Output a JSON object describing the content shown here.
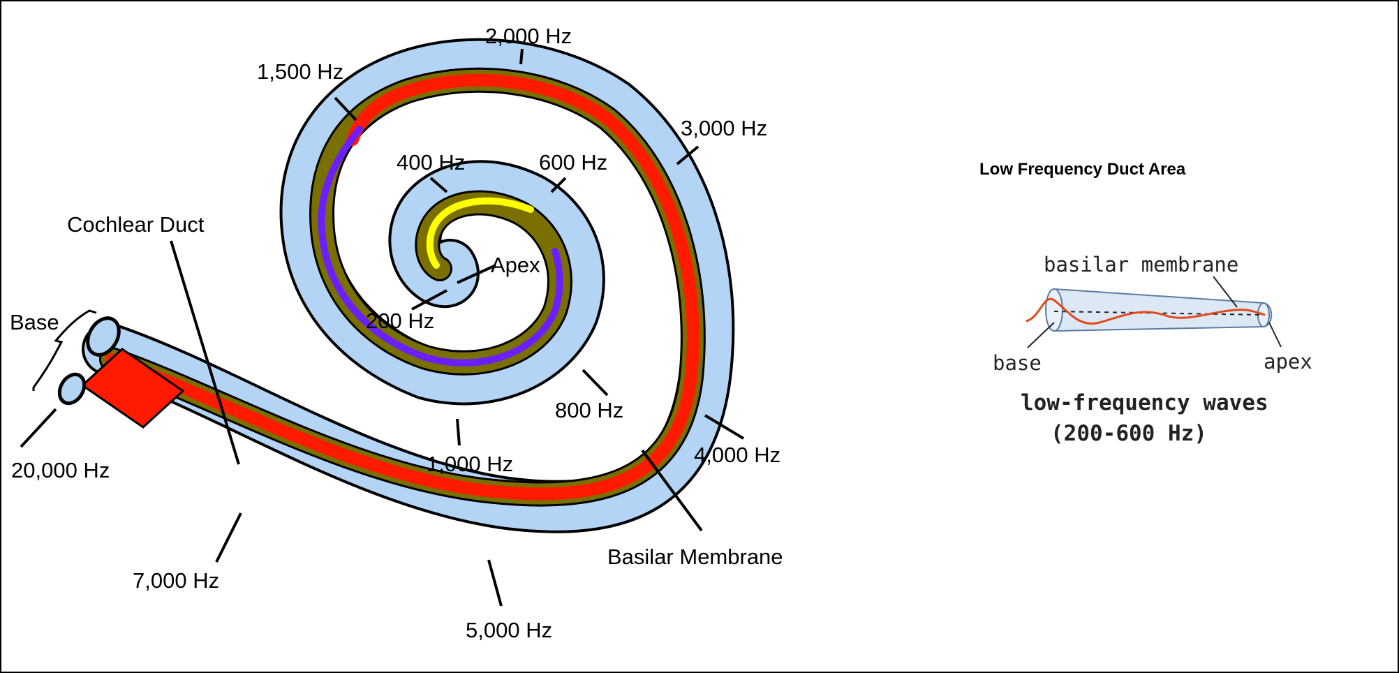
{
  "cochlea": {
    "labels": {
      "f2000": "2,000 Hz",
      "f1500": "1,500 Hz",
      "f3000": "3,000 Hz",
      "f400": "400 Hz",
      "f600": "600 Hz",
      "apex": "Apex",
      "f200": "200 Hz",
      "cochlear_duct": "Cochlear Duct",
      "base": "Base",
      "f20000": "20,000 Hz",
      "f800": "800 Hz",
      "f1000": "1,000 Hz",
      "f4000": "4,000 Hz",
      "basilar_membrane": "Basilar Membrane",
      "f7000": "7,000 Hz",
      "f5000": "5,000 Hz"
    },
    "colors": {
      "duct": "#b3d4f5",
      "outline": "#000000",
      "membrane_band": "#7a7000",
      "high_freq": "#ff1a00",
      "mid_freq": "#6a1fff",
      "low_freq": "#ffff00"
    }
  },
  "inset": {
    "title": "Low Frequency Duct Area",
    "basilar_membrane": "basilar membrane",
    "base": "base",
    "apex": "apex",
    "caption_line1": "low-frequency waves",
    "caption_line2": "(200-600 Hz)",
    "colors": {
      "tube": "#dde8f5",
      "wave": "#e04a1a"
    }
  }
}
